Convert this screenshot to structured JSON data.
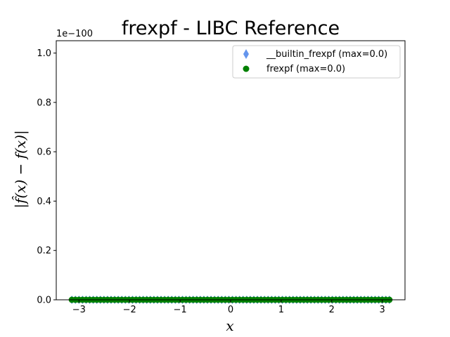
{
  "chart_data": {
    "type": "scatter",
    "title": "frexpf - LIBC Reference",
    "xlabel": "x",
    "ylabel": "|f̂(x) − f(x)|",
    "y_offset_text": "1e−100",
    "xlim": [
      -3.45,
      3.45
    ],
    "ylim": [
      0,
      1.05
    ],
    "x_ticks": [
      -3,
      -2,
      -1,
      0,
      1,
      2,
      3
    ],
    "x_tick_labels": [
      "−3",
      "−2",
      "−1",
      "0",
      "1",
      "2",
      "3"
    ],
    "y_ticks": [
      0.0,
      0.2,
      0.4,
      0.6,
      0.8,
      1.0
    ],
    "y_tick_labels": [
      "0.0",
      "0.2",
      "0.4",
      "0.6",
      "0.8",
      "1.0"
    ],
    "grid": false,
    "legend_position": "top-right",
    "x_range": [
      -3.14159,
      3.14159
    ],
    "num_points": 90,
    "series": [
      {
        "name": "__builtin_frexpf (max=0.0)",
        "marker": "diamond",
        "color": "#6495ed",
        "y_value": 0
      },
      {
        "name": "frexpf (max=0.0)",
        "marker": "circle",
        "color": "#008000",
        "y_value": 0
      }
    ]
  }
}
